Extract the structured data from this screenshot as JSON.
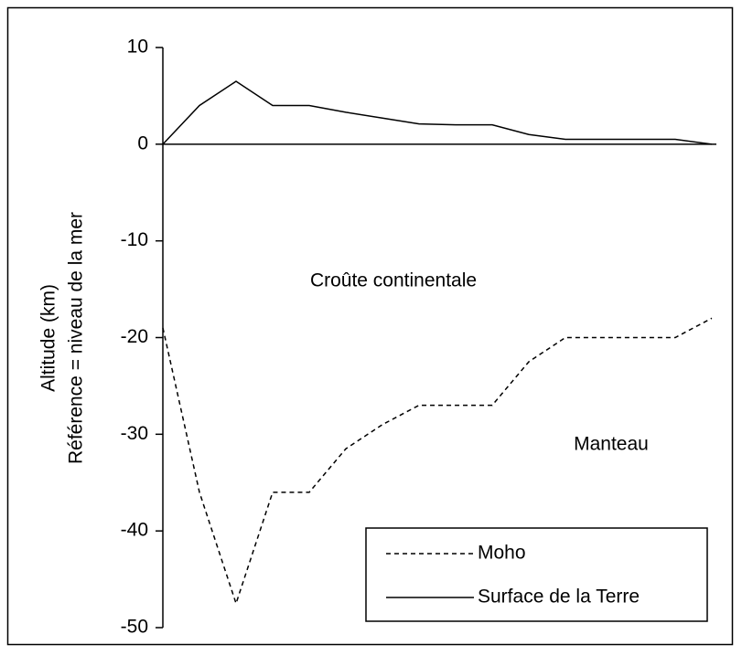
{
  "chart_data": {
    "type": "line",
    "y_label_lines": [
      "Altitude (km)",
      "Référence = niveau de la mer"
    ],
    "annotations": [
      "Croûte continentale",
      "Manteau"
    ],
    "x": [
      0,
      1,
      2,
      3,
      4,
      5,
      6,
      7,
      8,
      9,
      10,
      11,
      12,
      13,
      14,
      15
    ],
    "xlim": [
      0,
      15
    ],
    "ylim": [
      -50,
      10
    ],
    "yticks": [
      10,
      0,
      -10,
      -20,
      -30,
      -40,
      -50
    ],
    "legend": "bottom-right",
    "series": [
      {
        "name": "Moho",
        "color": "#000000",
        "dash": true,
        "values": [
          -19,
          -36,
          -47.5,
          -36,
          -36,
          -31.5,
          -29,
          -27,
          -27,
          -27,
          -22.5,
          -20,
          -20,
          -20,
          -20,
          -18
        ]
      },
      {
        "name": "Surface de la Terre",
        "color": "#000000",
        "dash": false,
        "values": [
          0,
          4,
          6.5,
          4,
          4,
          3.3,
          2.7,
          2.1,
          2,
          2,
          1,
          0.5,
          0.5,
          0.5,
          0.5,
          0
        ]
      }
    ]
  }
}
